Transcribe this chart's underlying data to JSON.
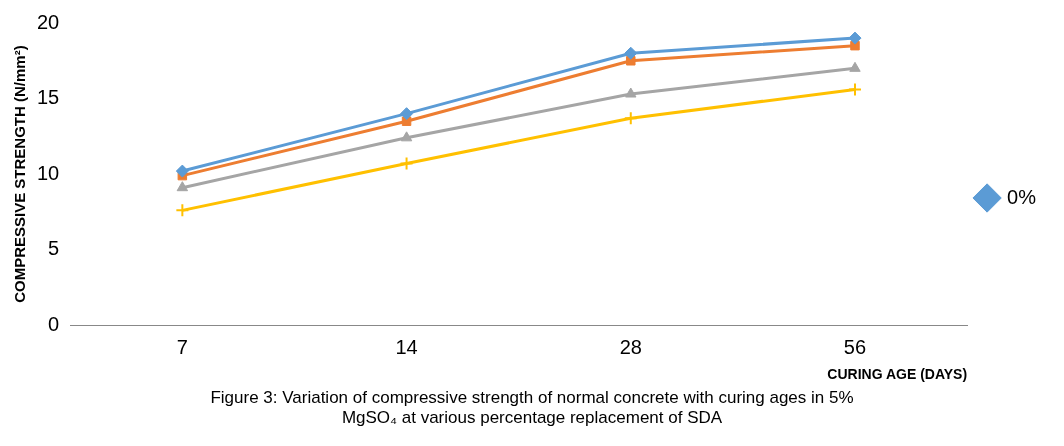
{
  "chart_data": {
    "type": "line",
    "xlabel": "CURING AGE (DAYS)",
    "ylabel": "COMPRESSIVE STRENGTH (N/mm²)",
    "categories": [
      "7",
      "14",
      "28",
      "56"
    ],
    "ylim": [
      0,
      20
    ],
    "yticks": [
      0,
      5,
      10,
      15,
      20
    ],
    "grid": false,
    "legend": "right",
    "series": [
      {
        "name": "0%",
        "color": "#5b9bd5",
        "marker": "diamond",
        "values": [
          10.2,
          14.0,
          18.0,
          19.0
        ]
      },
      {
        "color": "#ed7d31",
        "marker": "square",
        "values": [
          9.9,
          13.5,
          17.5,
          18.5
        ]
      },
      {
        "color": "#a5a5a5",
        "marker": "triangle",
        "values": [
          9.1,
          12.4,
          15.3,
          17.0
        ]
      },
      {
        "color": "#ffc000",
        "marker": "cross",
        "values": [
          7.6,
          10.7,
          13.7,
          15.6
        ]
      }
    ],
    "annotations": [
      "Figure 3: Variation of compressive strength of normal concrete with curing ages in 5% MgSO₄ at various percentage replacement of SDA"
    ]
  }
}
